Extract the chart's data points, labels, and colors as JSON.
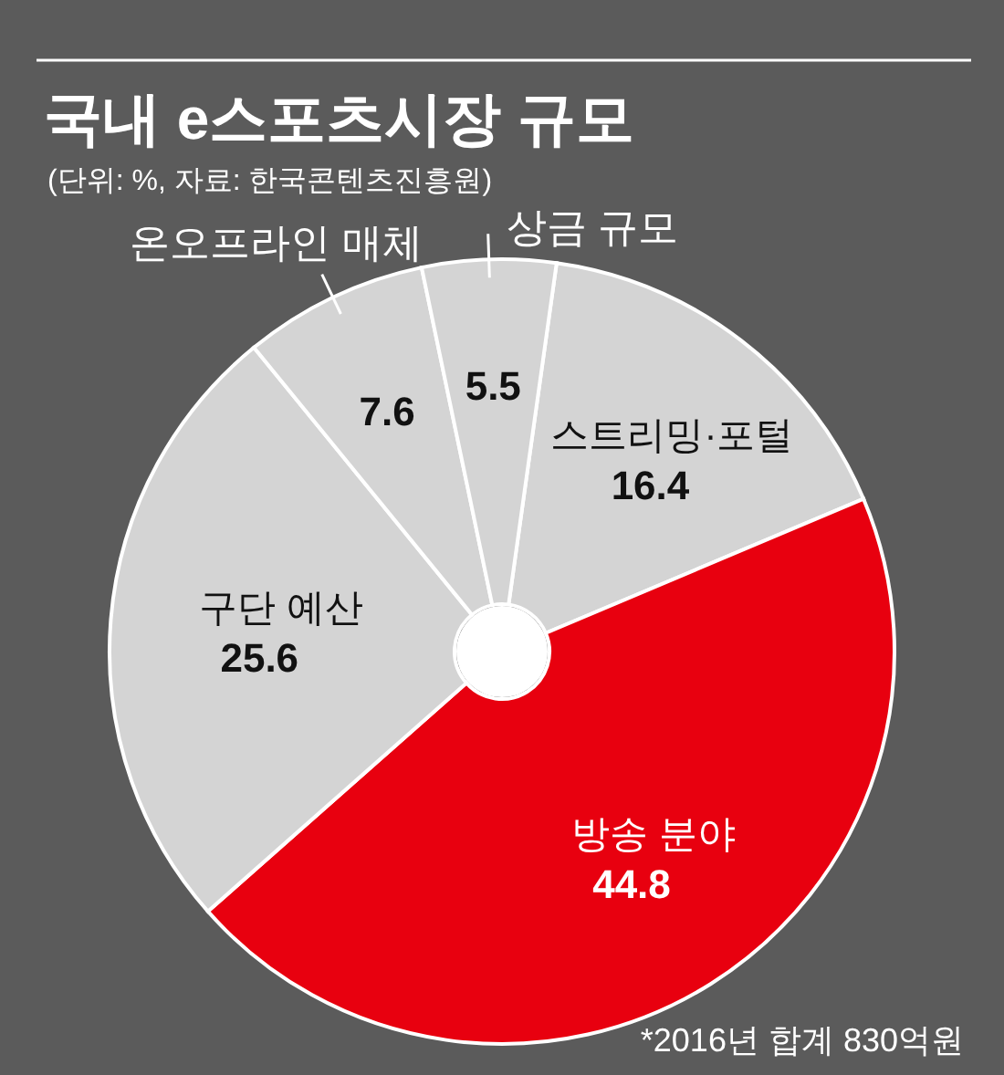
{
  "chart_data": {
    "type": "donut",
    "title": "국내 e스포츠시장 규모",
    "subtitle": "(단위: %, 자료: 한국콘텐츠진흥원)",
    "categories": [
      "스트리밍·포털",
      "방송 분야",
      "구단 예산",
      "온오프라인 매체",
      "상금 규모"
    ],
    "values": [
      16.4,
      44.8,
      25.6,
      7.6,
      5.5
    ],
    "colors": [
      "#d4d4d4",
      "#e8000f",
      "#d4d4d4",
      "#d4d4d4",
      "#d4d4d4"
    ],
    "data_labels": true,
    "annotations": [
      "*2016년 합계 830억원"
    ]
  }
}
